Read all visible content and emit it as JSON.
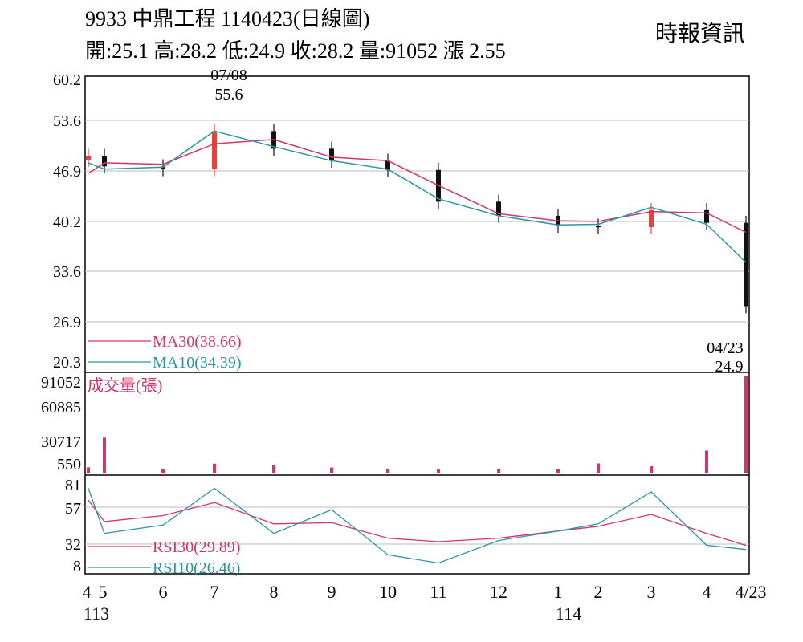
{
  "header": {
    "title": "9933  中鼎工程 1140423(日線圖)",
    "stats": "開:25.1 高:28.2 低:24.9 收:28.2 量:91052 漲 2.55",
    "source": "時報資訊"
  },
  "colors": {
    "up": "#e8413c",
    "down": "#111111",
    "ma30": "#d6336c",
    "ma10": "#2b96a8",
    "rsi30": "#d6336c",
    "rsi10": "#2b96a8",
    "volume": "#d6336c"
  },
  "chart_data": [
    {
      "type": "candlestick",
      "name": "price",
      "yticks": [
        "60.2",
        "53.6",
        "46.9",
        "40.2",
        "33.6",
        "26.9",
        "20.3"
      ],
      "ylim": [
        20.3,
        60.2
      ],
      "annotations": [
        {
          "date": "07/08",
          "value": "55.6"
        },
        {
          "date": "04/23",
          "value": "24.9"
        }
      ],
      "legend": [
        {
          "label": "MA30(38.66)",
          "series": "ma30"
        },
        {
          "label": "MA10(34.39)",
          "series": "ma10"
        }
      ],
      "months": [
        "4",
        "5",
        "6",
        "7",
        "8",
        "9",
        "10",
        "11",
        "12",
        "1",
        "2",
        "3",
        "4",
        "4/23"
      ],
      "month_close": [
        49.5,
        48.0,
        47.6,
        53.0,
        50.5,
        48.8,
        47.5,
        43.0,
        41.0,
        39.6,
        39.4,
        41.8,
        40.0,
        28.2
      ],
      "series": [
        {
          "name": "MA30",
          "values": [
            47.0,
            48.5,
            48.3,
            51.2,
            51.8,
            49.3,
            48.8,
            45.3,
            41.3,
            40.3,
            40.2,
            41.6,
            41.4,
            38.66
          ]
        },
        {
          "name": "MA10",
          "values": [
            48.5,
            47.6,
            47.9,
            53.0,
            50.8,
            48.8,
            47.6,
            43.4,
            41.0,
            39.7,
            39.8,
            42.2,
            39.8,
            34.39
          ]
        }
      ]
    },
    {
      "type": "bar",
      "name": "volume",
      "title": "成交量(張)",
      "yticks": [
        "91052",
        "60885",
        "30717",
        "550"
      ],
      "ylim": [
        550,
        91052
      ],
      "series": [
        {
          "name": "成交量(張)",
          "values": [
            6200,
            33700,
            4800,
            9600,
            8400,
            6000,
            5100,
            4700,
            4300,
            5000,
            9800,
            7200,
            21700,
            91052
          ]
        }
      ]
    },
    {
      "type": "line",
      "name": "rsi",
      "yticks": [
        "81",
        "57",
        "32",
        "8"
      ],
      "ylim": [
        8,
        81
      ],
      "legend": [
        {
          "label": "RSI30(29.89)",
          "series": "rsi30"
        },
        {
          "label": "RSI10(26.46)",
          "series": "rsi10"
        }
      ],
      "series": [
        {
          "name": "RSI30",
          "values": [
            68,
            50,
            55,
            66,
            48,
            49,
            36,
            33,
            36,
            42,
            46,
            56,
            40,
            29.89
          ]
        },
        {
          "name": "RSI10",
          "values": [
            78,
            40,
            47,
            78,
            40,
            60,
            22,
            15,
            34,
            42,
            48,
            75,
            30,
            26.46
          ]
        }
      ]
    }
  ],
  "x_axis": {
    "labels": [
      "4",
      "5",
      "6",
      "7",
      "8",
      "9",
      "10",
      "11",
      "12",
      "1",
      "2",
      "3",
      "4",
      "4/23"
    ],
    "years": [
      "113",
      "114"
    ]
  }
}
